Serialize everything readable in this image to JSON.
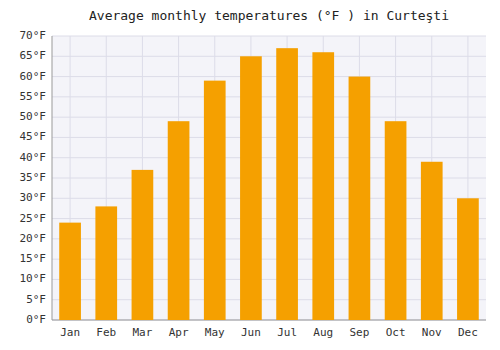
{
  "chart_data": {
    "type": "bar",
    "title": "Average monthly temperatures (°F ) in Curteşti",
    "categories": [
      "Jan",
      "Feb",
      "Mar",
      "Apr",
      "May",
      "Jun",
      "Jul",
      "Aug",
      "Sep",
      "Oct",
      "Nov",
      "Dec"
    ],
    "values": [
      24,
      28,
      37,
      49,
      59,
      65,
      67,
      66,
      60,
      49,
      39,
      30
    ],
    "color": "#F5A000",
    "ylim": [
      0,
      70
    ],
    "yticks": [
      {
        "value": 0,
        "label": "0°F"
      },
      {
        "value": 5,
        "label": "5°F"
      },
      {
        "value": 10,
        "label": "10°F"
      },
      {
        "value": 15,
        "label": "15°F"
      },
      {
        "value": 20,
        "label": "20°F"
      },
      {
        "value": 25,
        "label": "25°F"
      },
      {
        "value": 30,
        "label": "30°F"
      },
      {
        "value": 35,
        "label": "35°F"
      },
      {
        "value": 40,
        "label": "40°F"
      },
      {
        "value": 45,
        "label": "45°F"
      },
      {
        "value": 50,
        "label": "50°F"
      },
      {
        "value": 55,
        "label": "55°F"
      },
      {
        "value": 60,
        "label": "60°F"
      },
      {
        "value": 65,
        "label": "65°F"
      },
      {
        "value": 70,
        "label": "70°F"
      }
    ],
    "grid": true
  }
}
